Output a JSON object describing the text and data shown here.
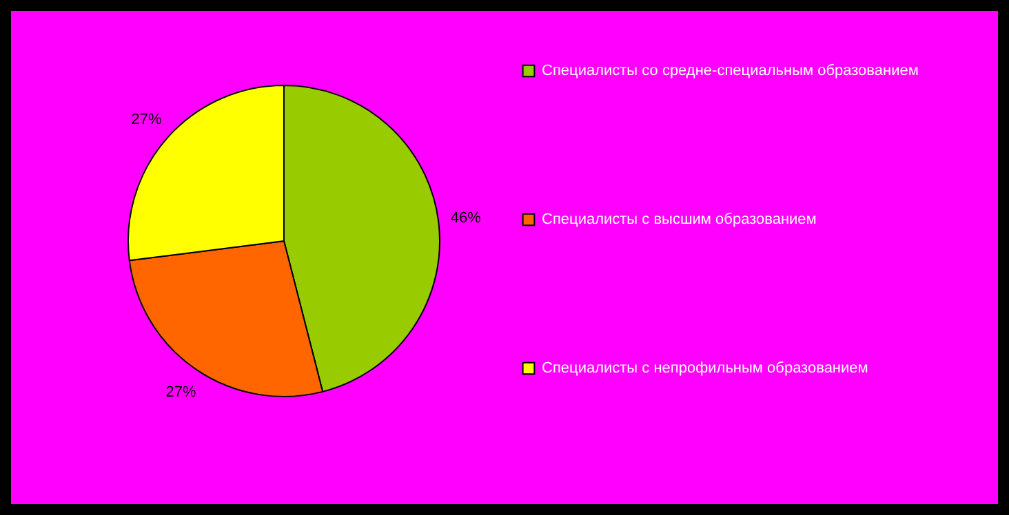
{
  "chart_data": {
    "type": "pie",
    "categories": [
      "Специалисты со средне-специальным образованием",
      "Специалисты с высшим образованием",
      "Специалисты с непрофильным образованием"
    ],
    "values": [
      46,
      27,
      27
    ],
    "colors": [
      "#99cc00",
      "#ff6600",
      "#ffff00"
    ],
    "value_labels": [
      "46%",
      "27%",
      "27%"
    ],
    "legend": "right"
  }
}
